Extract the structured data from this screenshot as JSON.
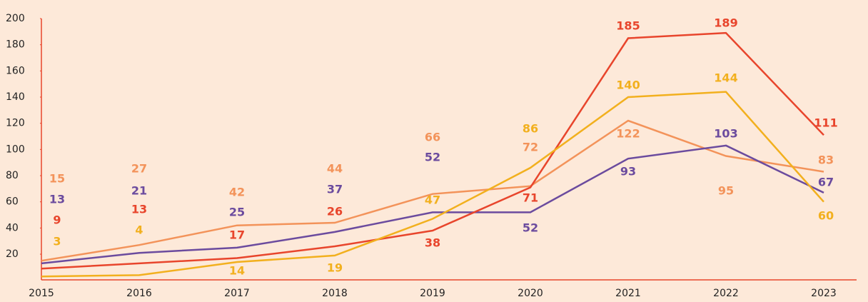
{
  "chart_data": {
    "type": "line",
    "categories": [
      "2015",
      "2016",
      "2017",
      "2018",
      "2019",
      "2020",
      "2021",
      "2022",
      "2023"
    ],
    "series": [
      {
        "name": "Orange",
        "color": "#f3935a",
        "values": [
          15,
          27,
          42,
          44,
          66,
          72,
          122,
          95,
          83
        ]
      },
      {
        "name": "Purple",
        "color": "#6b4b9e",
        "values": [
          13,
          21,
          25,
          37,
          52,
          52,
          93,
          103,
          67
        ]
      },
      {
        "name": "Red",
        "color": "#e8452c",
        "values": [
          9,
          13,
          17,
          26,
          38,
          71,
          185,
          189,
          111
        ]
      },
      {
        "name": "Yellow",
        "color": "#f2b01e",
        "values": [
          3,
          4,
          14,
          19,
          47,
          86,
          140,
          144,
          60
        ]
      }
    ],
    "ylim": [
      0,
      200
    ],
    "yticks": [
      20,
      40,
      60,
      80,
      100,
      120,
      140,
      160,
      180,
      200
    ],
    "axis_color": "#e8452c"
  }
}
